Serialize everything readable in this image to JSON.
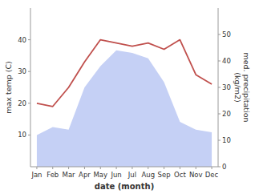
{
  "chart_data": {
    "type": "line",
    "categories": [
      "Jan",
      "Feb",
      "Mar",
      "Apr",
      "May",
      "Jun",
      "Jul",
      "Aug",
      "Sep",
      "Oct",
      "Nov",
      "Dec"
    ],
    "xlabel": "date (month)",
    "ylabel": "max temp (C)",
    "y2label": "med. precipitation\n(kg/m2)",
    "series": [
      {
        "type": "area",
        "axis": "y2",
        "color": "#c5d0f5",
        "values": [
          12,
          15,
          14,
          30,
          38,
          44,
          43,
          41,
          32,
          17,
          14,
          13
        ]
      },
      {
        "type": "line",
        "color": "#c0504d",
        "values": [
          20,
          19,
          25,
          33,
          40,
          39,
          38,
          39,
          37,
          40,
          29,
          26
        ]
      }
    ],
    "ylim": [
      0,
      50
    ],
    "yticks": [
      10,
      20,
      30,
      40
    ],
    "y2lim": [
      0,
      60
    ],
    "y2ticks": [
      0,
      10,
      20,
      30,
      40,
      50
    ],
    "grid": false
  }
}
